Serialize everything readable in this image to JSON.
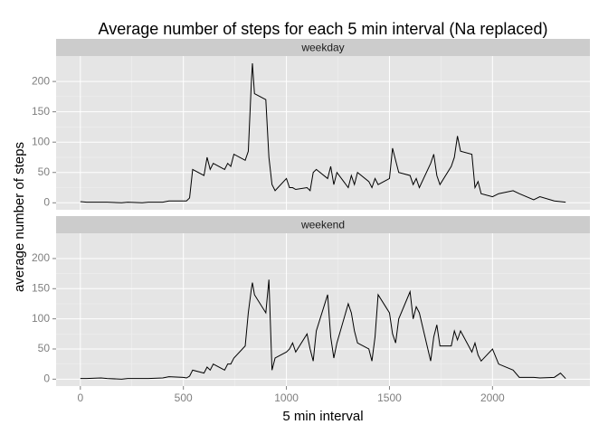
{
  "chart_data": {
    "type": "line",
    "facet": true,
    "title": "Average number of steps for each 5 min interval (Na replaced)",
    "xlabel": "5 min interval",
    "ylabel": "average number of steps",
    "x": [
      0,
      30,
      100,
      130,
      200,
      230,
      300,
      330,
      400,
      430,
      500,
      515,
      530,
      545,
      600,
      615,
      630,
      645,
      700,
      715,
      730,
      745,
      800,
      815,
      830,
      835,
      845,
      900,
      915,
      930,
      945,
      1000,
      1015,
      1030,
      1045,
      1100,
      1115,
      1130,
      1145,
      1200,
      1215,
      1230,
      1245,
      1300,
      1315,
      1330,
      1345,
      1400,
      1415,
      1430,
      1445,
      1500,
      1515,
      1530,
      1545,
      1600,
      1615,
      1630,
      1645,
      1700,
      1715,
      1730,
      1745,
      1800,
      1815,
      1830,
      1845,
      1900,
      1915,
      1930,
      1945,
      2000,
      2030,
      2100,
      2130,
      2200,
      2230,
      2300,
      2330,
      2355
    ],
    "series": [
      {
        "name": "weekday",
        "color": "#000000",
        "values": [
          2,
          1,
          1,
          1,
          0,
          1,
          0,
          1,
          1,
          3,
          3,
          3,
          8,
          55,
          45,
          75,
          55,
          65,
          55,
          65,
          60,
          80,
          70,
          85,
          200,
          230,
          180,
          170,
          75,
          30,
          20,
          40,
          25,
          25,
          22,
          25,
          20,
          50,
          55,
          40,
          60,
          30,
          50,
          25,
          45,
          30,
          50,
          35,
          25,
          40,
          30,
          40,
          90,
          70,
          50,
          45,
          30,
          40,
          25,
          65,
          80,
          45,
          30,
          60,
          75,
          110,
          85,
          80,
          25,
          35,
          15,
          10,
          15,
          20,
          15,
          5,
          10,
          3,
          2,
          1
        ]
      },
      {
        "name": "weekend",
        "color": "#000000",
        "values": [
          1,
          1,
          2,
          1,
          0,
          1,
          1,
          1,
          2,
          4,
          3,
          2,
          5,
          15,
          10,
          20,
          15,
          25,
          15,
          25,
          25,
          35,
          55,
          110,
          150,
          160,
          140,
          110,
          165,
          15,
          35,
          45,
          50,
          60,
          45,
          75,
          50,
          30,
          80,
          140,
          70,
          35,
          60,
          125,
          110,
          80,
          60,
          50,
          30,
          70,
          140,
          110,
          75,
          60,
          100,
          145,
          100,
          120,
          110,
          30,
          70,
          90,
          55,
          55,
          80,
          65,
          80,
          45,
          60,
          40,
          30,
          50,
          25,
          15,
          3,
          3,
          2,
          3,
          10,
          1
        ]
      }
    ],
    "xlim": [
      -117.75,
      2472.75
    ],
    "ylim": [
      -11.5,
      241.9
    ],
    "xticks": [
      0,
      500,
      1000,
      1500,
      2000
    ],
    "yticks": [
      0,
      50,
      100,
      150,
      200
    ],
    "grid": true
  }
}
